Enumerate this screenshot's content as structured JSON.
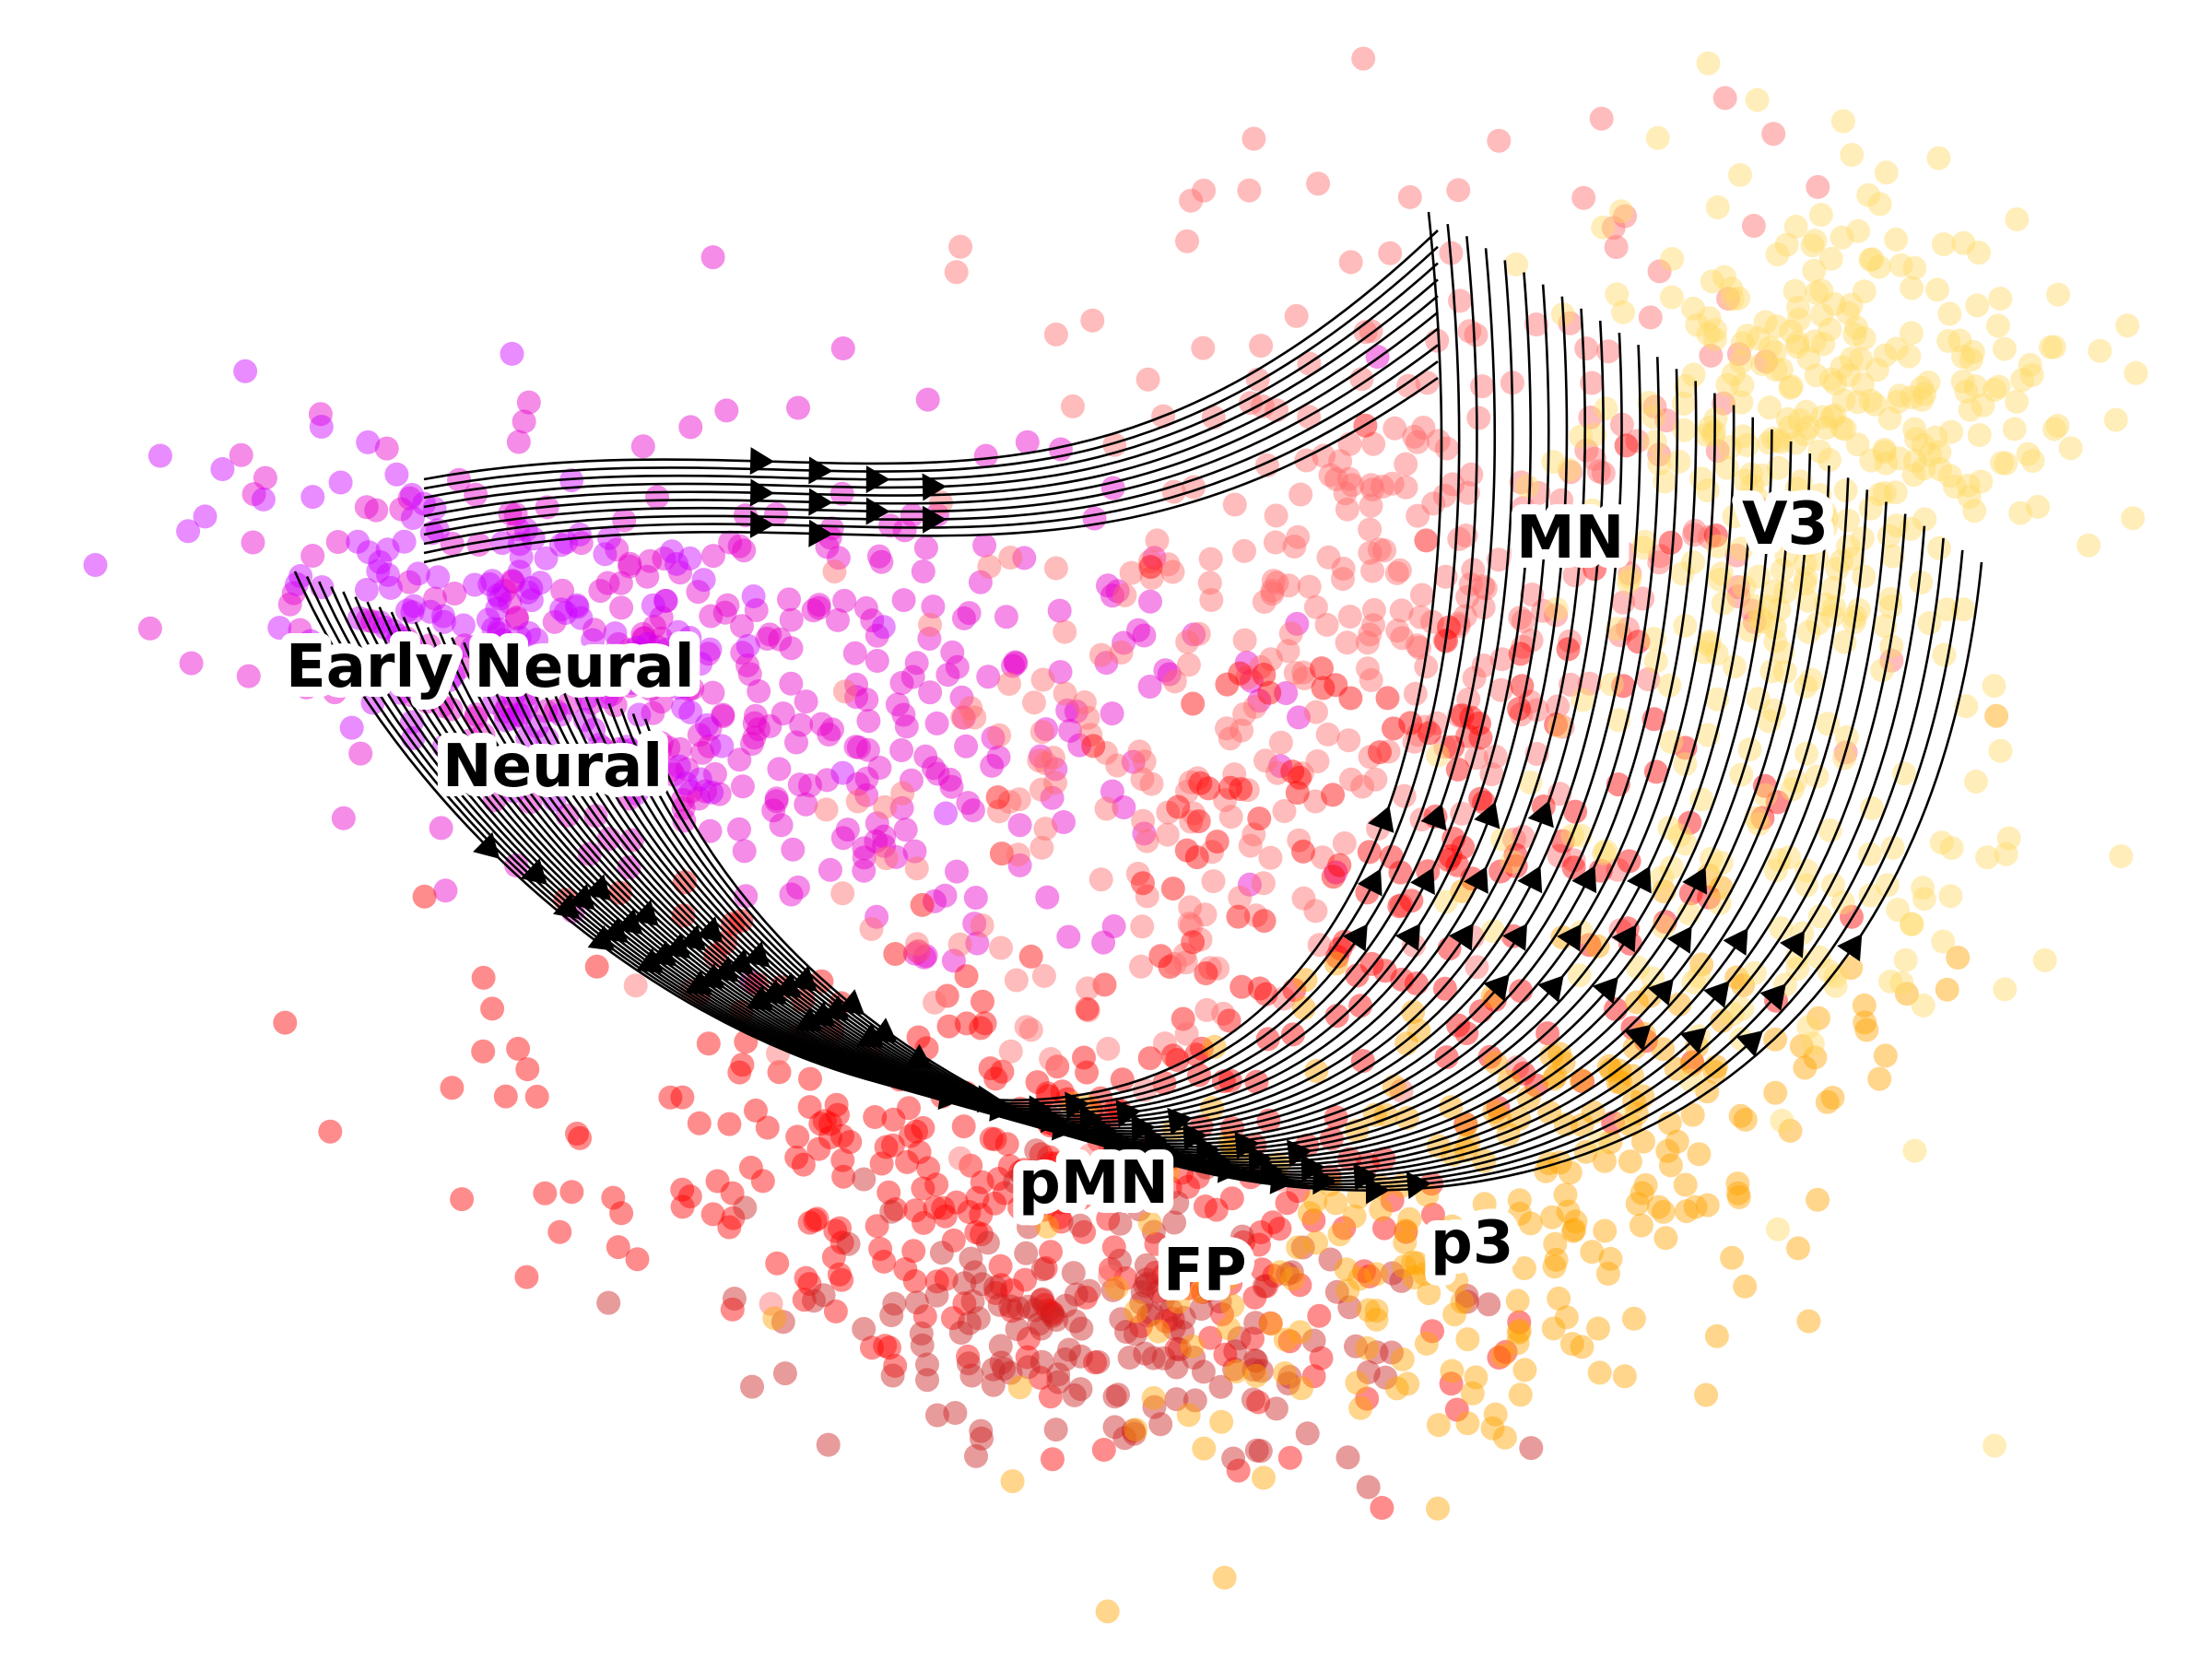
{
  "chart_data": {
    "type": "scatter",
    "title": "",
    "xlabel": "",
    "ylabel": "",
    "grid": false,
    "axes_visible": false,
    "overlay": "velocity streamlines (black, with arrowheads)",
    "point_opacity": 0.45,
    "cell_types": [
      {
        "name": "Early Neural",
        "color": "#cc00ff"
      },
      {
        "name": "Neural",
        "color": "#e600cc"
      },
      {
        "name": "pMN",
        "color": "#ff0000"
      },
      {
        "name": "FP",
        "color": "#cc2222"
      },
      {
        "name": "MN",
        "color": "#ff6b6b"
      },
      {
        "name": "p3",
        "color": "#ffa500"
      },
      {
        "name": "V3",
        "color": "#ffd966"
      }
    ],
    "labels": [
      {
        "id": "early-neural",
        "text": "Early Neural"
      },
      {
        "id": "neural",
        "text": "Neural"
      },
      {
        "id": "mn",
        "text": "MN"
      },
      {
        "id": "v3",
        "text": "V3"
      },
      {
        "id": "pmn",
        "text": "pMN"
      },
      {
        "id": "fp",
        "text": "FP"
      },
      {
        "id": "p3",
        "text": "p3"
      }
    ]
  }
}
